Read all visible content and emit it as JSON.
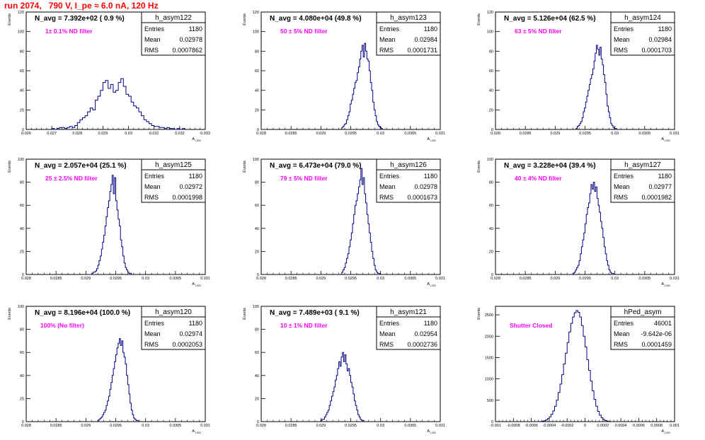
{
  "page_title": "run 2074,   790 V, I_pe ≈ 6.0 nA, 120 Hz",
  "colors": {
    "title": "#ff0000",
    "annotation": "#ff00ff",
    "histogram": "#000080",
    "frame": "#000000"
  },
  "chart_data": [
    {
      "type": "histogram",
      "name": "h_asym122",
      "header": "N_avg = 7.392e+02 ( 0.9 %)",
      "annotation": "1± 0.1% ND filter",
      "stats": {
        "Entries": "1180",
        "Mean": "0.02978",
        "RMS": "0.0007862"
      },
      "xlim": [
        0.026,
        0.033
      ],
      "ylim": [
        0,
        120
      ],
      "xticks": [
        "0.026",
        "0.027",
        "0.028",
        "0.029",
        "0.03",
        "0.031",
        "0.032",
        "0.033"
      ],
      "yticks": [
        "0",
        "20",
        "40",
        "60",
        "80",
        "100",
        "120"
      ],
      "ylabel": "Events",
      "xlabel": "A_LED",
      "bins": {
        "start": 0.027,
        "width": 0.0001,
        "counts": [
          1,
          0,
          1,
          2,
          2,
          1,
          2,
          3,
          2,
          4,
          7,
          10,
          12,
          14,
          18,
          22,
          20,
          30,
          34,
          40,
          48,
          50,
          42,
          46,
          38,
          40,
          48,
          52,
          44,
          36,
          34,
          28,
          24,
          22,
          18,
          14,
          10,
          8,
          6,
          4,
          3,
          3,
          2,
          2,
          1,
          2,
          1,
          1,
          0,
          1,
          0,
          1
        ]
      }
    },
    {
      "type": "histogram",
      "name": "h_asym123",
      "header": "N_avg = 4.080e+04 (49.8 %)",
      "annotation": "50 ± 5% ND filter",
      "stats": {
        "Entries": "1180",
        "Mean": "0.02984",
        "RMS": "0.0001731"
      },
      "xlim": [
        0.028,
        0.031
      ],
      "ylim": [
        0,
        120
      ],
      "xticks": [
        "0.028",
        "0.0285",
        "0.029",
        "0.0295",
        "0.03",
        "0.0305",
        "0.031"
      ],
      "yticks": [
        "0",
        "20",
        "40",
        "60",
        "80",
        "100",
        "120"
      ],
      "ylabel": "Events",
      "xlabel": "A_LED",
      "bins": {
        "start": 0.02935,
        "width": 2e-05,
        "counts": [
          2,
          3,
          5,
          6,
          10,
          14,
          18,
          26,
          30,
          36,
          42,
          48,
          50,
          58,
          64,
          72,
          80,
          86,
          74,
          88,
          80,
          72,
          70,
          60,
          48,
          40,
          28,
          20,
          14,
          8,
          5,
          3,
          2,
          1
        ]
      }
    },
    {
      "type": "histogram",
      "name": "h_asym124",
      "header": "N_avg = 5.126e+04 (62.5 %)",
      "annotation": "63 ± 5% ND filter",
      "stats": {
        "Entries": "1180",
        "Mean": "0.02984",
        "RMS": "0.0001703"
      },
      "xlim": [
        0.028,
        0.031
      ],
      "ylim": [
        0,
        120
      ],
      "xticks": [
        "0.028",
        "0.0285",
        "0.029",
        "0.0295",
        "0.03",
        "0.0305",
        "0.031"
      ],
      "yticks": [
        "0",
        "20",
        "40",
        "60",
        "80",
        "100",
        "120"
      ],
      "ylabel": "Events",
      "xlabel": "A_LED",
      "bins": {
        "start": 0.02935,
        "width": 2e-05,
        "counts": [
          1,
          3,
          4,
          6,
          8,
          12,
          18,
          22,
          28,
          34,
          40,
          46,
          52,
          56,
          62,
          70,
          78,
          86,
          82,
          76,
          84,
          72,
          66,
          56,
          48,
          36,
          24,
          18,
          12,
          6,
          4,
          2,
          1,
          1
        ]
      }
    },
    {
      "type": "histogram",
      "name": "h_asym125",
      "header": "N_avg = 2.057e+04 (25.1 %)",
      "annotation": "25 ± 2.5% ND filter",
      "stats": {
        "Entries": "1180",
        "Mean": "0.02972",
        "RMS": "0.0001998"
      },
      "xlim": [
        0.028,
        0.031
      ],
      "ylim": [
        0,
        100
      ],
      "xticks": [
        "0.028",
        "0.0285",
        "0.029",
        "0.0295",
        "0.03",
        "0.0305",
        "0.031"
      ],
      "yticks": [
        "0",
        "20",
        "40",
        "60",
        "80",
        "100"
      ],
      "ylabel": "Events",
      "xlabel": "A_LED",
      "bins": {
        "start": 0.0291,
        "width": 2e-05,
        "counts": [
          1,
          2,
          2,
          3,
          5,
          8,
          12,
          16,
          22,
          28,
          34,
          42,
          50,
          58,
          64,
          72,
          78,
          86,
          70,
          84,
          64,
          56,
          48,
          42,
          30,
          24,
          16,
          10,
          6,
          4,
          2,
          1,
          1
        ]
      }
    },
    {
      "type": "histogram",
      "name": "h_asym126",
      "header": "N_avg = 6.473e+04 (79.0 %)",
      "annotation": "79 ± 5% ND filter",
      "stats": {
        "Entries": "1180",
        "Mean": "0.02978",
        "RMS": "0.0001673"
      },
      "xlim": [
        0.028,
        0.031
      ],
      "ylim": [
        0,
        100
      ],
      "xticks": [
        "0.028",
        "0.0285",
        "0.029",
        "0.0295",
        "0.03",
        "0.0305",
        "0.031"
      ],
      "yticks": [
        "0",
        "20",
        "40",
        "60",
        "80",
        "100"
      ],
      "ylabel": "Events",
      "xlabel": "A_LED",
      "bins": {
        "start": 0.02935,
        "width": 2e-05,
        "counts": [
          2,
          4,
          6,
          10,
          14,
          18,
          24,
          30,
          36,
          44,
          52,
          60,
          64,
          70,
          76,
          82,
          92,
          78,
          84,
          70,
          62,
          52,
          44,
          36,
          28,
          20,
          14,
          8,
          4,
          2,
          1,
          1
        ]
      }
    },
    {
      "type": "histogram",
      "name": "h_asym127",
      "header": "N_avg = 3.228e+04 (39.4 %)",
      "annotation": "40 ± 4% ND filter",
      "stats": {
        "Entries": "1180",
        "Mean": "0.02977",
        "RMS": "0.0001982"
      },
      "xlim": [
        0.028,
        0.031
      ],
      "ylim": [
        0,
        100
      ],
      "xticks": [
        "0.028",
        "0.0285",
        "0.029",
        "0.0295",
        "0.03",
        "0.0305",
        "0.031"
      ],
      "yticks": [
        "0",
        "20",
        "40",
        "60",
        "80",
        "100"
      ],
      "ylabel": "Events",
      "xlabel": "A_LED",
      "bins": {
        "start": 0.0293,
        "width": 2e-05,
        "counts": [
          1,
          2,
          4,
          6,
          8,
          12,
          18,
          24,
          30,
          36,
          44,
          52,
          58,
          62,
          70,
          78,
          74,
          80,
          72,
          76,
          66,
          60,
          54,
          46,
          40,
          32,
          24,
          18,
          12,
          8,
          4,
          2,
          1,
          1
        ]
      }
    },
    {
      "type": "histogram",
      "name": "h_asym120",
      "header": "N_avg = 8.196e+04 (100.0 %)",
      "annotation": "100% (No filter)",
      "stats": {
        "Entries": "1180",
        "Mean": "0.02974",
        "RMS": "0.0002053"
      },
      "xlim": [
        0.028,
        0.031
      ],
      "ylim": [
        0,
        100
      ],
      "xticks": [
        "0.028",
        "0.0285",
        "0.029",
        "0.0295",
        "0.03",
        "0.0305",
        "0.031"
      ],
      "yticks": [
        "0",
        "20",
        "40",
        "60",
        "80",
        "100"
      ],
      "ylabel": "Events",
      "xlabel": "A_LED",
      "bins": {
        "start": 0.0292,
        "width": 2e-05,
        "counts": [
          1,
          2,
          3,
          4,
          6,
          8,
          10,
          14,
          18,
          22,
          28,
          34,
          40,
          46,
          52,
          58,
          64,
          68,
          72,
          66,
          70,
          60,
          56,
          50,
          40,
          32,
          24,
          16,
          10,
          6,
          3,
          2,
          1,
          1
        ]
      }
    },
    {
      "type": "histogram",
      "name": "h_asym121",
      "header": "N_avg = 7.489e+03 ( 9.1 %)",
      "annotation": "10 ± 1% ND filter",
      "stats": {
        "Entries": "1180",
        "Mean": "0.02954",
        "RMS": "0.0002736"
      },
      "xlim": [
        0.028,
        0.031
      ],
      "ylim": [
        0,
        100
      ],
      "xticks": [
        "0.028",
        "0.0285",
        "0.029",
        "0.0295",
        "0.03",
        "0.0305",
        "0.031"
      ],
      "yticks": [
        "0",
        "20",
        "40",
        "60",
        "80",
        "100"
      ],
      "ylabel": "Events",
      "xlabel": "A_LED",
      "bins": {
        "start": 0.029,
        "width": 2e-05,
        "counts": [
          1,
          2,
          2,
          4,
          6,
          8,
          10,
          14,
          18,
          22,
          26,
          30,
          36,
          40,
          46,
          52,
          48,
          56,
          60,
          52,
          58,
          50,
          44,
          46,
          40,
          34,
          30,
          24,
          18,
          14,
          10,
          6,
          4,
          2,
          1,
          1
        ]
      }
    },
    {
      "type": "histogram",
      "name": "hPed_asym",
      "header": "",
      "annotation": "Shutter Closed",
      "stats": {
        "Entries": "46001",
        "Mean": "-9.642e-06",
        "RMS": "0.0001459"
      },
      "xlim": [
        -0.001,
        0.001
      ],
      "ylim": [
        0,
        2700
      ],
      "xticks": [
        "-0.001",
        "-0.0008",
        "-0.0006",
        "-0.0004",
        "-0.0002",
        "0",
        "0.0002",
        "0.0004",
        "0.0006",
        "0.0008",
        "0.001"
      ],
      "yticks": [
        "0",
        "500",
        "1000",
        "1500",
        "2000",
        "2500"
      ],
      "ylabel": "Events",
      "xlabel": "A_LED",
      "bins": {
        "start": -0.0005,
        "width": 2e-05,
        "counts": [
          5,
          10,
          20,
          40,
          70,
          110,
          170,
          250,
          360,
          500,
          680,
          880,
          1100,
          1350,
          1600,
          1850,
          2100,
          2300,
          2450,
          2550,
          2600,
          2560,
          2450,
          2250,
          2000,
          1750,
          1450,
          1200,
          950,
          720,
          520,
          360,
          240,
          150,
          90,
          50,
          25,
          12,
          6
        ]
      }
    }
  ]
}
